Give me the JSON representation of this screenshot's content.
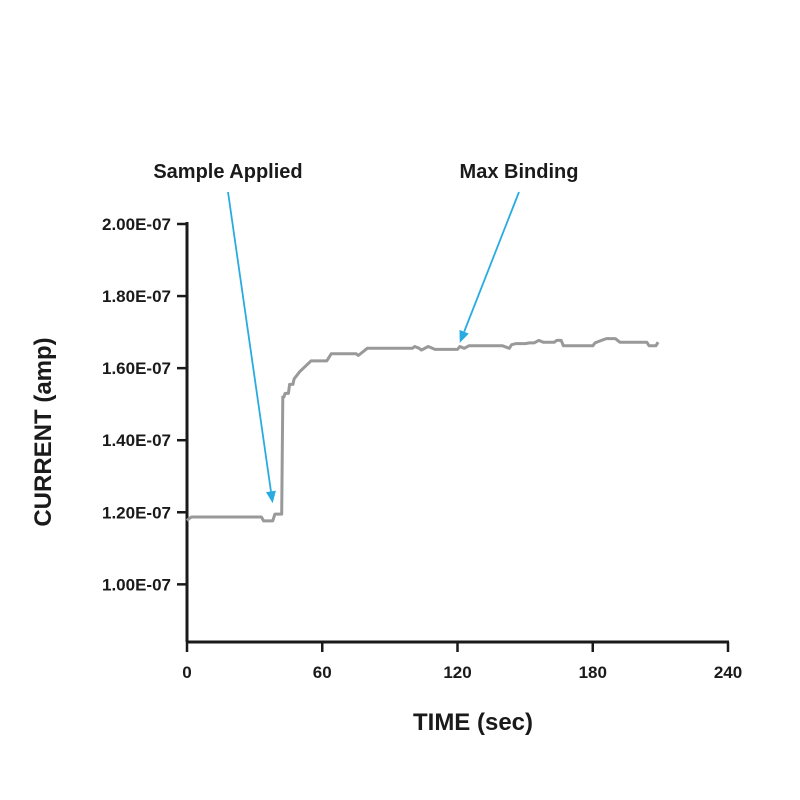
{
  "chart_data": {
    "type": "line",
    "title": "",
    "xlabel": "TIME (sec)",
    "ylabel": "CURRENT (amp)",
    "xlim": [
      0,
      240
    ],
    "ylim": [
      8.4e-08,
      2e-07
    ],
    "x_ticks": [
      0,
      60,
      120,
      180,
      240
    ],
    "x_tick_labels": [
      "0",
      "60",
      "120",
      "180",
      "240"
    ],
    "y_ticks": [
      1e-07,
      1.2e-07,
      1.4e-07,
      1.6e-07,
      1.8e-07,
      2e-07
    ],
    "y_tick_labels": [
      "1.00E-07",
      "1.20E-07",
      "1.40E-07",
      "1.60E-07",
      "1.80E-07",
      "2.00E-07"
    ],
    "grid": false,
    "legend": "none",
    "colors": {
      "line": "#999999",
      "axis": "#1a1a1a",
      "annotation_arrow": "#29abe2"
    },
    "series": [
      {
        "x": [
          0,
          1,
          2,
          10,
          20,
          33,
          34,
          38,
          39,
          42,
          42.5,
          43,
          43.5,
          45,
          45.5,
          47,
          47.5,
          50,
          55,
          56,
          62,
          63,
          64,
          70,
          75,
          76,
          79,
          80,
          84,
          88,
          90,
          100,
          101,
          103,
          104,
          107,
          110,
          114,
          116,
          117,
          120,
          121,
          123,
          125,
          126,
          128,
          140,
          143,
          144,
          146,
          150,
          152,
          154,
          156,
          158,
          163,
          164,
          166,
          167,
          170,
          180,
          181,
          183,
          186,
          187,
          190,
          192,
          200,
          204,
          205,
          208,
          209
        ],
        "y": [
          1.177e-07,
          1.183e-07,
          1.187e-07,
          1.187e-07,
          1.187e-07,
          1.187e-07,
          1.176e-07,
          1.176e-07,
          1.195e-07,
          1.195e-07,
          1.52e-07,
          1.52e-07,
          1.53e-07,
          1.53e-07,
          1.555e-07,
          1.555e-07,
          1.57e-07,
          1.59e-07,
          1.62e-07,
          1.62e-07,
          1.62e-07,
          1.63e-07,
          1.64e-07,
          1.64e-07,
          1.64e-07,
          1.635e-07,
          1.65e-07,
          1.655e-07,
          1.655e-07,
          1.655e-07,
          1.655e-07,
          1.655e-07,
          1.66e-07,
          1.655e-07,
          1.65e-07,
          1.66e-07,
          1.652e-07,
          1.652e-07,
          1.652e-07,
          1.652e-07,
          1.652e-07,
          1.66e-07,
          1.655e-07,
          1.662e-07,
          1.662e-07,
          1.662e-07,
          1.662e-07,
          1.655e-07,
          1.665e-07,
          1.668e-07,
          1.668e-07,
          1.67e-07,
          1.67e-07,
          1.677e-07,
          1.672e-07,
          1.672e-07,
          1.677e-07,
          1.677e-07,
          1.662e-07,
          1.662e-07,
          1.662e-07,
          1.67e-07,
          1.675e-07,
          1.682e-07,
          1.682e-07,
          1.682e-07,
          1.672e-07,
          1.672e-07,
          1.672e-07,
          1.662e-07,
          1.662e-07,
          1.672e-07
        ]
      }
    ],
    "annotations": [
      {
        "text": "Sample Applied",
        "x": 38,
        "y": 1.225e-07
      },
      {
        "text": "Max Binding",
        "x": 121,
        "y": 1.67e-07
      }
    ]
  }
}
